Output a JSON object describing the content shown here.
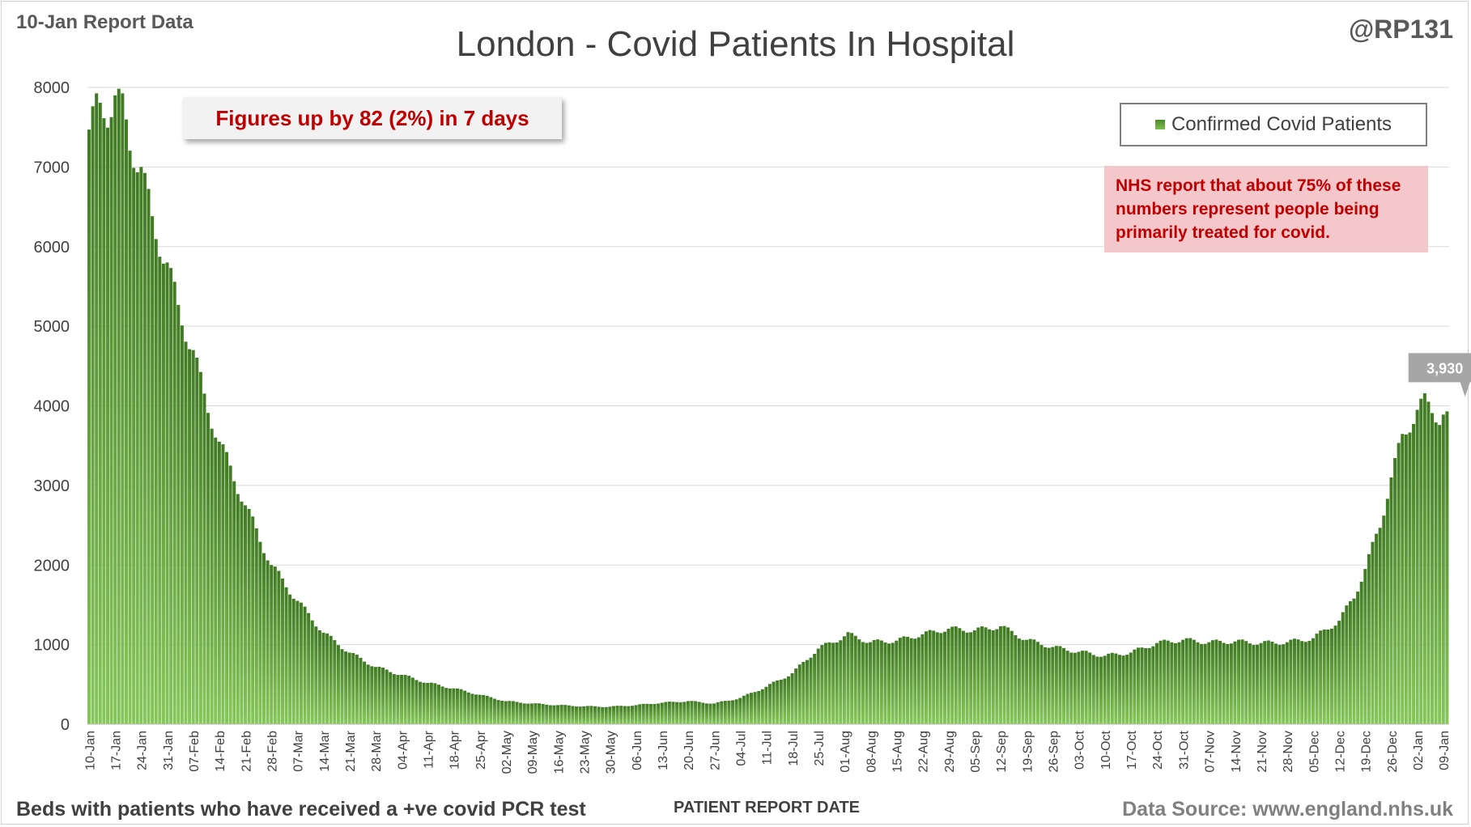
{
  "header": {
    "report_label": "10-Jan Report Data",
    "author": "@RP131"
  },
  "footer": {
    "description": "Beds with patients who have received a +ve covid PCR test",
    "source": "Data Source: www.england.nhs.uk"
  },
  "annotations": {
    "change_summary": "Figures up by 82 (2%) in 7 days",
    "note_lines": [
      "NHS report that about 75% of these",
      "numbers represent people being",
      "primarily treated for covid."
    ],
    "last_value_label": "3,930"
  },
  "colors": {
    "bar_top": "#3f7a22",
    "bar_bottom": "#86c75a",
    "note_text": "#c00000",
    "note_background": "#f4c7cb",
    "gridline": "#d9d9d9"
  },
  "chart_data": {
    "type": "bar",
    "title": "London - Covid Patients In Hospital",
    "xlabel": "PATIENT REPORT DATE",
    "ylabel": "",
    "ylim": [
      0,
      8000
    ],
    "yticks": [
      0,
      1000,
      2000,
      3000,
      4000,
      5000,
      6000,
      7000,
      8000
    ],
    "grid": true,
    "legend": {
      "position": "top-right",
      "entries": [
        "Confirmed Covid Patients"
      ]
    },
    "series": [
      {
        "name": "Confirmed Covid Patients",
        "date_range": [
          "10-Jan",
          "10-Jan"
        ],
        "anchors": [
          {
            "date": "10-Jan",
            "value": 7470
          },
          {
            "date": "12-Jan",
            "value": 7700
          },
          {
            "date": "15-Jan",
            "value": 7720
          },
          {
            "date": "17-Jan",
            "value": 7900
          },
          {
            "date": "19-Jan",
            "value": 7700
          },
          {
            "date": "21-Jan",
            "value": 7300
          },
          {
            "date": "24-Jan",
            "value": 7000
          },
          {
            "date": "27-Jan",
            "value": 6300
          },
          {
            "date": "31-Jan",
            "value": 5800
          },
          {
            "date": "03-Feb",
            "value": 5200
          },
          {
            "date": "07-Feb",
            "value": 4700
          },
          {
            "date": "10-Feb",
            "value": 4100
          },
          {
            "date": "14-Feb",
            "value": 3550
          },
          {
            "date": "21-Feb",
            "value": 2750
          },
          {
            "date": "28-Feb",
            "value": 2000
          },
          {
            "date": "07-Mar",
            "value": 1550
          },
          {
            "date": "14-Mar",
            "value": 1150
          },
          {
            "date": "21-Mar",
            "value": 900
          },
          {
            "date": "28-Mar",
            "value": 720
          },
          {
            "date": "04-Apr",
            "value": 620
          },
          {
            "date": "11-Apr",
            "value": 520
          },
          {
            "date": "18-Apr",
            "value": 450
          },
          {
            "date": "25-Apr",
            "value": 370
          },
          {
            "date": "02-May",
            "value": 290
          },
          {
            "date": "09-May",
            "value": 260
          },
          {
            "date": "16-May",
            "value": 240
          },
          {
            "date": "23-May",
            "value": 225
          },
          {
            "date": "30-May",
            "value": 220
          },
          {
            "date": "06-Jun",
            "value": 240
          },
          {
            "date": "13-Jun",
            "value": 270
          },
          {
            "date": "20-Jun",
            "value": 290
          },
          {
            "date": "27-Jun",
            "value": 260
          },
          {
            "date": "04-Jul",
            "value": 330
          },
          {
            "date": "11-Jul",
            "value": 470
          },
          {
            "date": "18-Jul",
            "value": 640
          },
          {
            "date": "25-Jul",
            "value": 950
          },
          {
            "date": "31-Jul",
            "value": 1080
          },
          {
            "date": "02-Aug",
            "value": 1130
          },
          {
            "date": "08-Aug",
            "value": 1030
          },
          {
            "date": "15-Aug",
            "value": 1050
          },
          {
            "date": "22-Aug",
            "value": 1130
          },
          {
            "date": "29-Aug",
            "value": 1200
          },
          {
            "date": "05-Sep",
            "value": 1180
          },
          {
            "date": "12-Sep",
            "value": 1230
          },
          {
            "date": "19-Sep",
            "value": 1060
          },
          {
            "date": "26-Sep",
            "value": 970
          },
          {
            "date": "03-Oct",
            "value": 910
          },
          {
            "date": "10-Oct",
            "value": 860
          },
          {
            "date": "17-Oct",
            "value": 900
          },
          {
            "date": "24-Oct",
            "value": 1020
          },
          {
            "date": "31-Oct",
            "value": 1060
          },
          {
            "date": "07-Nov",
            "value": 1030
          },
          {
            "date": "14-Nov",
            "value": 1040
          },
          {
            "date": "21-Nov",
            "value": 1020
          },
          {
            "date": "28-Nov",
            "value": 1030
          },
          {
            "date": "05-Dec",
            "value": 1080
          },
          {
            "date": "12-Dec",
            "value": 1300
          },
          {
            "date": "16-Dec",
            "value": 1600
          },
          {
            "date": "19-Dec",
            "value": 1950
          },
          {
            "date": "23-Dec",
            "value": 2500
          },
          {
            "date": "26-Dec",
            "value": 3100
          },
          {
            "date": "29-Dec",
            "value": 3600
          },
          {
            "date": "02-Jan",
            "value": 3950
          },
          {
            "date": "04-Jan",
            "value": 4040
          },
          {
            "date": "06-Jan",
            "value": 3960
          },
          {
            "date": "08-Jan",
            "value": 3850
          },
          {
            "date": "10-Jan",
            "value": 3930
          }
        ]
      }
    ],
    "x_tick_labels": [
      "10-Jan",
      "17-Jan",
      "24-Jan",
      "31-Jan",
      "07-Feb",
      "14-Feb",
      "21-Feb",
      "28-Feb",
      "07-Mar",
      "14-Mar",
      "21-Mar",
      "28-Mar",
      "04-Apr",
      "11-Apr",
      "18-Apr",
      "25-Apr",
      "02-May",
      "09-May",
      "16-May",
      "23-May",
      "30-May",
      "06-Jun",
      "13-Jun",
      "20-Jun",
      "27-Jun",
      "04-Jul",
      "11-Jul",
      "18-Jul",
      "25-Jul",
      "01-Aug",
      "08-Aug",
      "15-Aug",
      "22-Aug",
      "29-Aug",
      "05-Sep",
      "12-Sep",
      "19-Sep",
      "26-Sep",
      "03-Oct",
      "10-Oct",
      "17-Oct",
      "24-Oct",
      "31-Oct",
      "07-Nov",
      "14-Nov",
      "21-Nov",
      "28-Nov",
      "05-Dec",
      "12-Dec",
      "19-Dec",
      "26-Dec",
      "02-Jan",
      "09-Jan"
    ]
  }
}
